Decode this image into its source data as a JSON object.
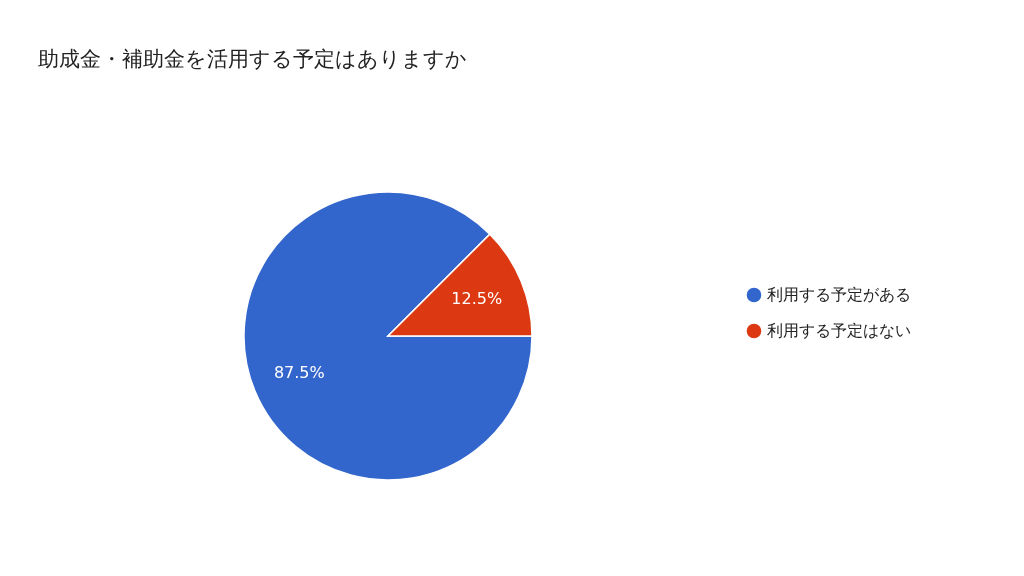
{
  "chart_data": {
    "type": "pie",
    "title": "助成金・補助金を活用する予定はありますか",
    "categories": [
      "利用する予定がある",
      "利用する予定はない"
    ],
    "values": [
      87.5,
      12.5
    ],
    "colors": [
      "#3366cc",
      "#dc3912"
    ],
    "value_labels": [
      "87.5%",
      "12.5%"
    ],
    "legend": "right"
  }
}
